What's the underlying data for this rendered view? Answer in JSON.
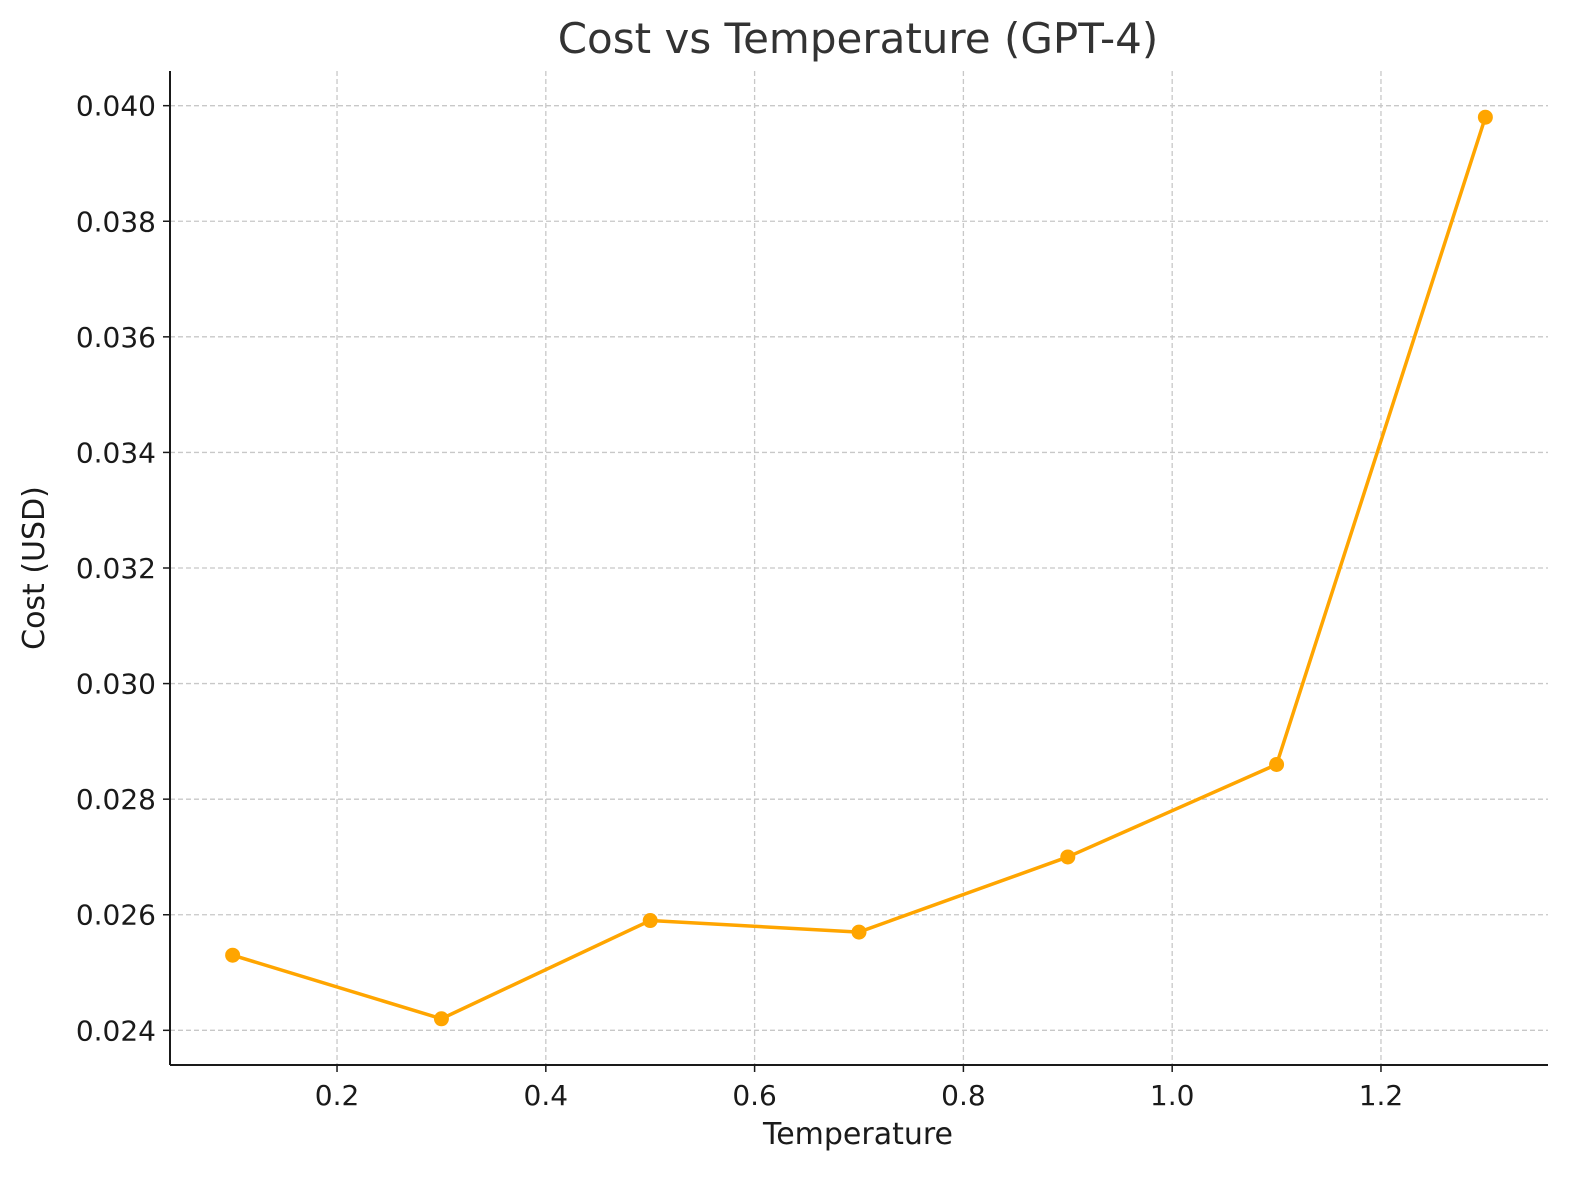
{
  "chart_data": {
    "type": "line",
    "title": "Cost vs Temperature (GPT-4)",
    "xlabel": "Temperature",
    "ylabel": "Cost (USD)",
    "x": [
      0.1,
      0.3,
      0.5,
      0.7,
      0.9,
      1.1,
      1.3
    ],
    "series": [
      {
        "values": [
          0.0253,
          0.0242,
          0.0259,
          0.0257,
          0.027,
          0.0286,
          0.0398
        ],
        "color": "#FFA500",
        "marker": "circle"
      }
    ],
    "xlim": [
      0.04,
      1.36
    ],
    "ylim": [
      0.0234,
      0.0406
    ],
    "xticks": [
      "0.2",
      "0.4",
      "0.6",
      "0.8",
      "1.0",
      "1.2"
    ],
    "yticks": [
      "0.024",
      "0.026",
      "0.028",
      "0.030",
      "0.032",
      "0.034",
      "0.036",
      "0.038",
      "0.040"
    ],
    "grid": true,
    "grid_style": "dashed",
    "legend": "none"
  }
}
